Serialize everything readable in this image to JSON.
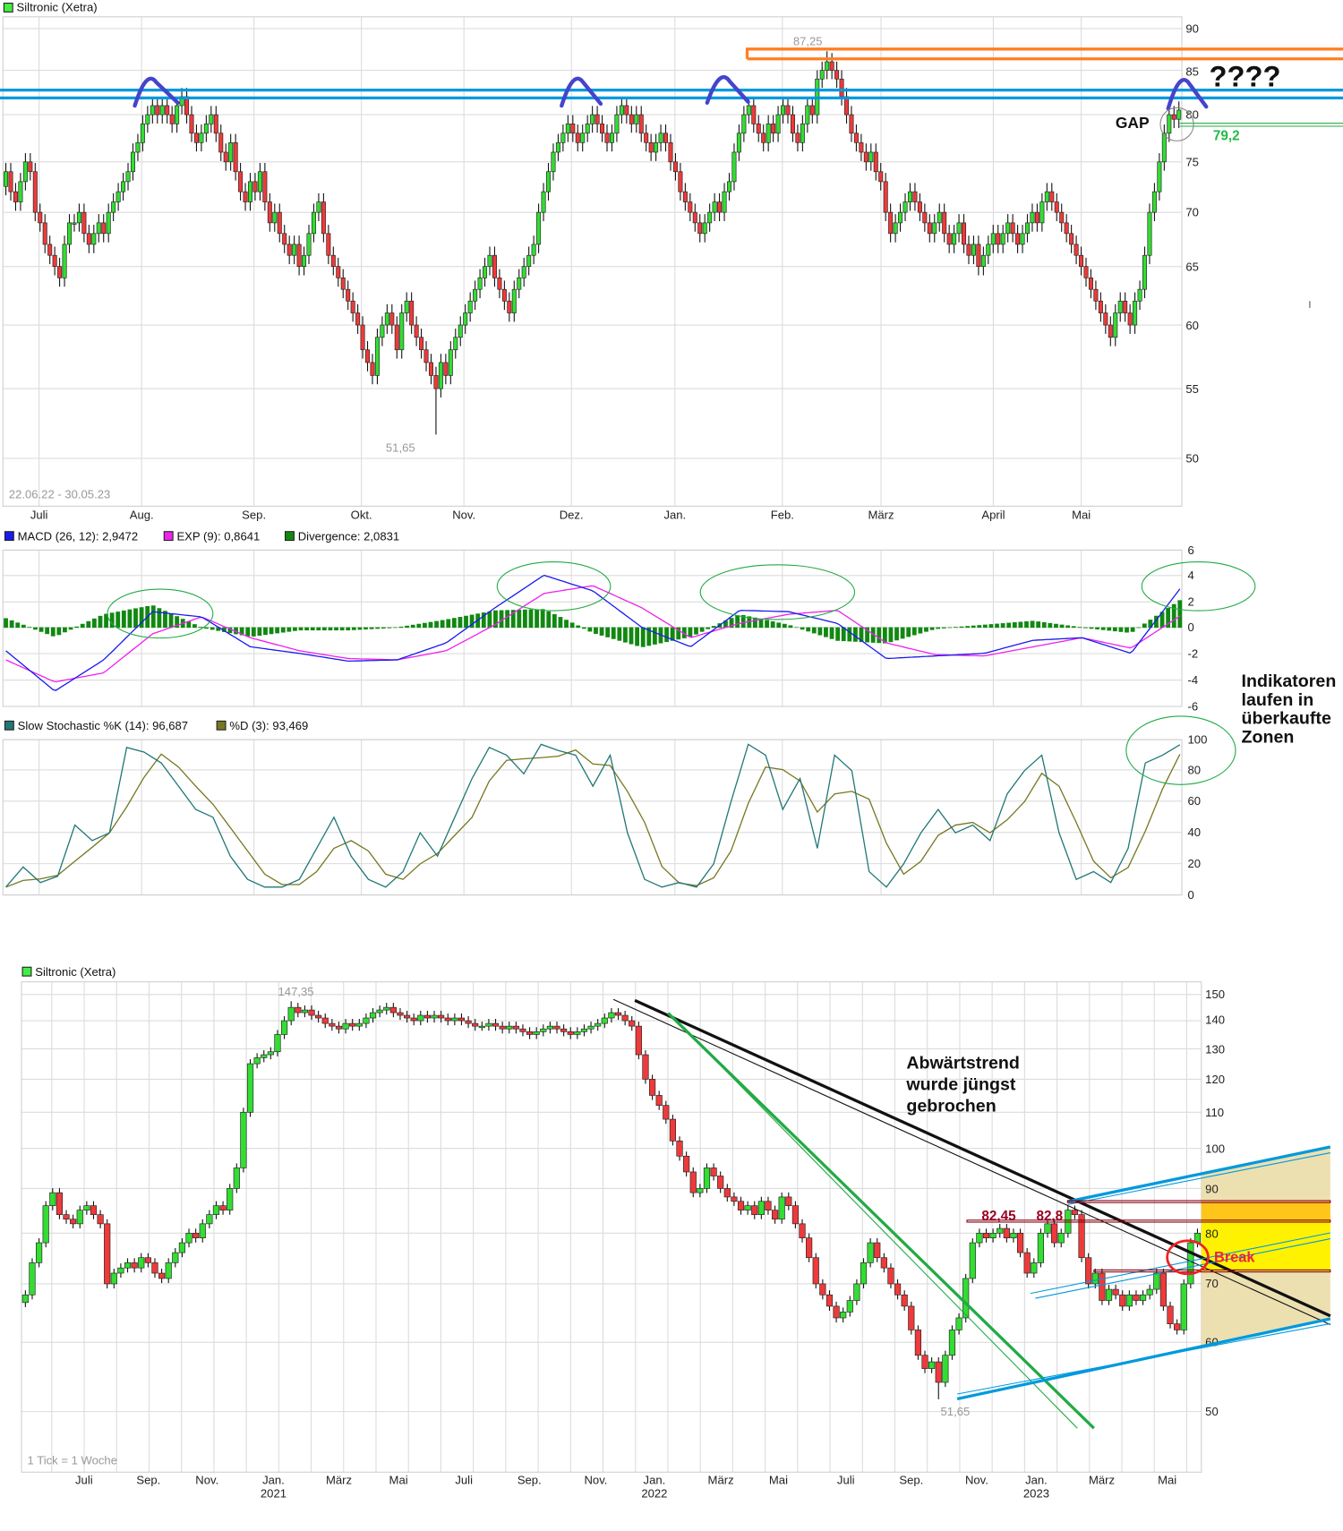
{
  "colors": {
    "up": "#33dd33",
    "down": "#ee3a3a",
    "macd": "#1a1aee",
    "exp": "#ee22ee",
    "divergence": "#118811",
    "stoch_k": "#227777",
    "stoch_d": "#777722",
    "blue_lines": "#0099dd",
    "orange_lines": "#ff7f22",
    "arcs": "#4444cc"
  },
  "top_chart": {
    "legend": "Siltronic (Xetra)",
    "date_range": "22.06.22 - 30.05.23",
    "months": [
      "Juli",
      "Aug.",
      "Sep.",
      "Okt.",
      "Nov.",
      "Dez.",
      "Jan.",
      "Feb.",
      "März",
      "April",
      "Mai"
    ],
    "y_ticks": [
      "90",
      "85",
      "80",
      "75",
      "70",
      "65",
      "60",
      "55",
      "50"
    ],
    "high_label": "87,25",
    "low_label": "51,65",
    "annotations": {
      "question": "????",
      "gap": "GAP",
      "level": "79,2"
    }
  },
  "macd_panel": {
    "legend_macd": "MACD (26, 12): 2,9472",
    "legend_exp": "EXP (9): 0,8641",
    "legend_div": "Divergence: 2,0831",
    "y_ticks": [
      "6",
      "4",
      "2",
      "0",
      "-2",
      "-4",
      "-6"
    ]
  },
  "stoch_panel": {
    "legend_k": "Slow Stochastic %K (14): 96,687",
    "legend_d": "%D (3): 93,469",
    "y_ticks": [
      "100",
      "80",
      "60",
      "40",
      "20",
      "0"
    ]
  },
  "side_note": [
    "Indikatoren",
    "laufen in",
    "überkaufte",
    "Zonen"
  ],
  "bottom_chart": {
    "legend": "Siltronic (Xetra)",
    "tick_note": "1 Tick = 1 Woche",
    "months": [
      "Juli",
      "Sep.",
      "Nov.",
      "Jan.",
      "März",
      "Mai",
      "Juli",
      "Sep.",
      "Nov.",
      "Jan.",
      "März",
      "Mai",
      "Juli",
      "Sep.",
      "Nov.",
      "Jan.",
      "März",
      "Mai"
    ],
    "years": [
      "2021",
      "2022",
      "2023"
    ],
    "y_ticks": [
      "150",
      "140",
      "130",
      "120",
      "110",
      "100",
      "90",
      "80",
      "70",
      "60",
      "50"
    ],
    "high_label": "147,35",
    "low_label": "51,65",
    "annotations": {
      "trend": [
        "Abwärtstrend",
        "wurde jüngst",
        "gebrochen"
      ],
      "level1": "82,45",
      "level2": "82,8",
      "break": "Break"
    }
  },
  "chart_data": [
    {
      "type": "candlestick",
      "title": "Siltronic (Xetra)",
      "period": "22.06.22 - 30.05.23",
      "interval": "daily",
      "y_scale": "log",
      "ylim": [
        50,
        90
      ],
      "high": 87.25,
      "low": 51.65,
      "close": [
        74,
        72,
        71,
        73,
        75,
        74,
        70,
        69,
        67,
        66,
        65,
        64,
        67,
        69,
        69,
        70,
        68,
        67,
        68,
        69,
        68,
        70,
        71,
        72,
        73,
        74,
        76,
        77,
        79,
        80,
        81,
        80,
        81,
        80,
        79,
        81,
        82,
        80,
        78,
        77,
        78,
        79,
        80,
        78,
        76,
        75,
        77,
        74,
        72,
        71,
        73,
        72,
        74,
        71,
        69,
        70,
        68,
        67,
        66,
        67,
        65,
        66,
        68,
        70,
        71,
        68,
        66,
        65,
        64,
        63,
        62,
        61,
        60,
        58,
        57,
        56,
        59,
        60,
        61,
        60,
        58,
        61,
        62,
        60,
        59,
        58,
        57,
        56,
        55,
        57,
        56,
        58,
        59,
        60,
        61,
        62,
        63,
        64,
        65,
        66,
        64,
        63,
        62,
        61,
        63,
        64,
        65,
        66,
        67,
        70,
        72,
        74,
        76,
        77,
        78,
        79,
        78,
        77,
        78,
        79,
        80,
        79,
        78,
        77,
        78,
        80,
        81,
        80,
        79,
        80,
        78,
        77,
        76,
        77,
        78,
        77,
        75,
        74,
        72,
        71,
        70,
        69,
        68,
        69,
        70,
        71,
        70,
        72,
        73,
        76,
        78,
        80,
        81,
        79,
        78,
        77,
        79,
        78,
        80,
        81,
        80,
        78,
        77,
        79,
        81,
        80,
        84,
        85,
        86,
        85,
        84,
        82,
        80,
        78,
        77,
        76,
        75,
        76,
        74,
        73,
        70,
        68,
        69,
        70,
        71,
        72,
        71,
        70,
        69,
        68,
        69,
        70,
        68,
        67,
        68,
        69,
        67,
        66,
        67,
        65,
        66,
        67,
        68,
        67,
        68,
        69,
        68,
        67,
        68,
        69,
        70,
        69,
        71,
        72,
        71,
        70,
        69,
        68,
        67,
        66,
        65,
        64,
        63,
        62,
        61,
        60,
        59,
        61,
        62,
        61,
        60,
        62,
        63,
        66,
        70,
        72,
        75,
        78,
        80,
        79.5,
        80.5
      ]
    },
    {
      "type": "line",
      "title": "MACD (26, 12)",
      "ylim": [
        -6,
        6
      ],
      "series": [
        {
          "name": "MACD (26, 12)",
          "values": [
            -1.8,
            -4.9,
            -2.5,
            1.2,
            0.8,
            -1.5,
            -2.0,
            -2.6,
            -2.5,
            -1.2,
            1.5,
            4.0,
            2.8,
            0.0,
            -1.5,
            1.3,
            1.2,
            0.3,
            -2.4,
            -2.2,
            -2.0,
            -1.0,
            -0.8,
            -2.0,
            2.9472
          ]
        },
        {
          "name": "EXP (9)",
          "values": [
            -2.5,
            -4.2,
            -3.5,
            -0.5,
            0.8,
            -0.8,
            -1.8,
            -2.4,
            -2.5,
            -1.8,
            0.2,
            2.6,
            3.2,
            1.5,
            -0.8,
            0.3,
            1.0,
            1.3,
            -1.2,
            -2.1,
            -2.2,
            -1.5,
            -0.8,
            -1.6,
            0.8641
          ]
        },
        {
          "name": "Divergence",
          "type": "bar",
          "note": "MACD - EXP"
        }
      ]
    },
    {
      "type": "line",
      "title": "Slow Stochastic",
      "ylim": [
        0,
        100
      ],
      "series": [
        {
          "name": "Slow Stochastic %K (14)",
          "values": [
            5,
            18,
            8,
            12,
            45,
            35,
            40,
            95,
            92,
            85,
            70,
            55,
            50,
            25,
            10,
            5,
            5,
            10,
            30,
            50,
            25,
            10,
            5,
            15,
            40,
            25,
            50,
            75,
            95,
            90,
            78,
            97,
            93,
            90,
            70,
            90,
            40,
            10,
            5,
            8,
            5,
            20,
            60,
            97,
            90,
            55,
            75,
            30,
            90,
            80,
            15,
            5,
            20,
            40,
            55,
            40,
            45,
            35,
            65,
            80,
            90,
            40,
            10,
            15,
            8,
            30,
            85,
            90,
            96.687
          ]
        },
        {
          "name": "%D (3)",
          "note": "3-period average of %K"
        }
      ]
    },
    {
      "type": "candlestick",
      "title": "Siltronic (Xetra)",
      "interval": "weekly",
      "y_scale": "log",
      "ylim": [
        50,
        150
      ],
      "high": 147.35,
      "low": 51.65,
      "close": [
        68,
        74,
        78,
        86,
        89,
        84,
        83,
        82,
        85,
        86,
        84,
        82,
        70,
        72,
        73,
        74,
        73,
        75,
        74,
        72,
        71,
        74,
        76,
        78,
        80,
        79,
        82,
        84,
        86,
        85,
        90,
        95,
        110,
        125,
        127,
        128,
        129,
        135,
        140,
        145,
        143,
        144,
        142,
        141,
        139,
        138,
        137,
        139,
        138,
        139,
        141,
        143,
        144,
        145,
        143,
        142,
        141,
        140,
        142,
        141,
        142,
        141,
        140,
        141,
        140,
        139,
        138,
        138,
        139,
        138,
        137,
        138,
        137,
        136,
        135,
        136,
        137,
        138,
        137,
        136,
        135,
        136,
        137,
        138,
        139,
        141,
        143,
        142,
        140,
        138,
        128,
        120,
        115,
        112,
        108,
        102,
        98,
        94,
        89,
        90,
        95,
        93,
        90,
        88,
        87,
        85,
        86,
        84,
        87,
        85,
        83,
        88,
        86,
        82,
        79,
        75,
        70,
        68,
        66,
        64,
        65,
        67,
        70,
        74,
        78,
        75,
        73,
        70,
        68,
        66,
        62,
        58,
        56,
        57,
        54,
        58,
        62,
        64,
        71,
        78,
        80,
        79,
        80,
        81,
        79,
        80,
        76,
        72,
        74,
        80,
        82,
        78,
        80,
        85,
        84,
        75,
        70,
        72,
        67,
        69,
        68,
        66,
        68,
        67,
        68,
        69,
        72,
        66,
        63,
        62,
        70,
        78,
        80
      ]
    }
  ]
}
